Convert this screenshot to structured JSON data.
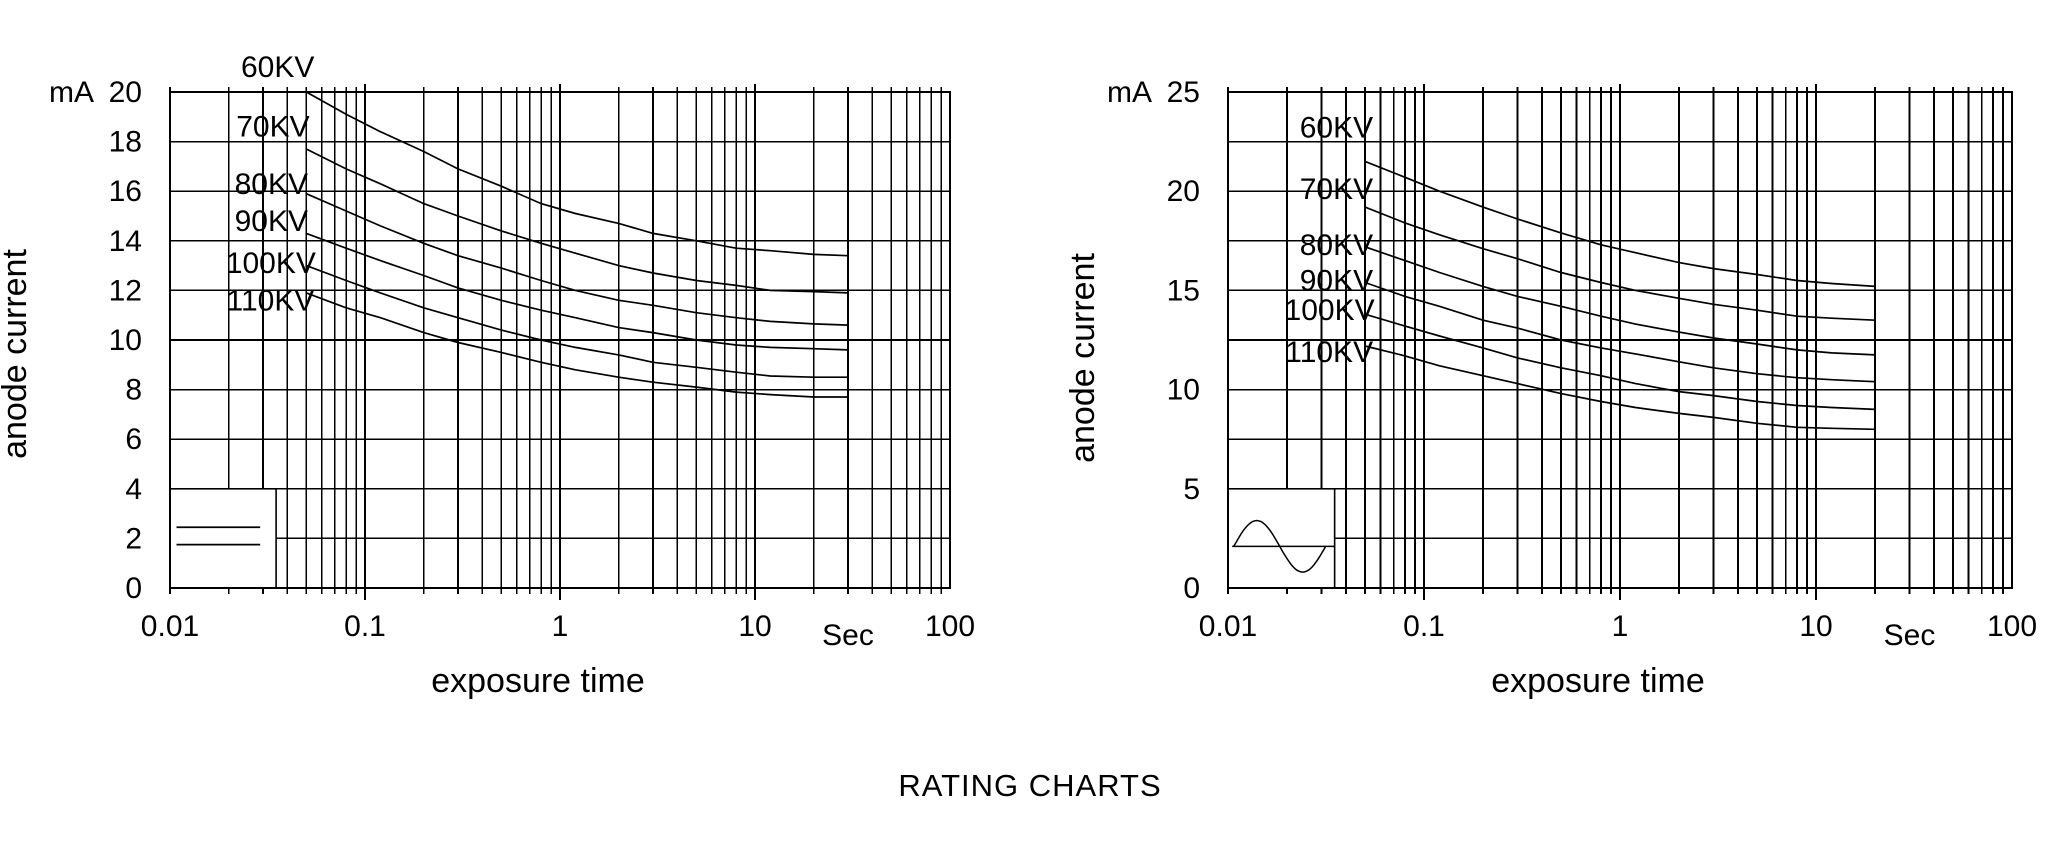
{
  "page": {
    "title": "RATING CHARTS",
    "background": "#ffffff",
    "ink_color": "#000000"
  },
  "chart_data": [
    {
      "id": "constant-potential-rating-chart",
      "type": "line",
      "title": "",
      "x_axis": {
        "scale": "log",
        "min": 0.01,
        "max": 100,
        "label": "exposure time",
        "unit_label": "Sec",
        "unit_label_t": 30,
        "ticks": [
          {
            "t": 0.01,
            "label": "0.01"
          },
          {
            "t": 0.1,
            "label": "0.1"
          },
          {
            "t": 1,
            "label": "1"
          },
          {
            "t": 10,
            "label": "10"
          },
          {
            "t": 100,
            "label": "100"
          }
        ]
      },
      "y_axis": {
        "unit": "mA",
        "min": 0,
        "max": 20,
        "tick_step": 2,
        "grid_step": 2,
        "label": "anode current"
      },
      "grid": true,
      "legend": {
        "symbol": "constant-potential-waveform"
      },
      "series": [
        {
          "name": "60KV",
          "label_t": 0.055,
          "label_mA": 21.0,
          "points": [
            [
              0.05,
              20.0
            ],
            [
              0.08,
              19.1
            ],
            [
              0.12,
              18.4
            ],
            [
              0.2,
              17.6
            ],
            [
              0.3,
              16.9
            ],
            [
              0.5,
              16.2
            ],
            [
              0.8,
              15.5
            ],
            [
              1.2,
              15.1
            ],
            [
              2,
              14.7
            ],
            [
              3,
              14.3
            ],
            [
              5,
              14.0
            ],
            [
              8,
              13.7
            ],
            [
              12,
              13.6
            ],
            [
              20,
              13.45
            ],
            [
              30,
              13.4
            ]
          ]
        },
        {
          "name": "70KV",
          "label_t": 0.052,
          "label_mA": 18.6,
          "points": [
            [
              0.05,
              17.7
            ],
            [
              0.08,
              16.9
            ],
            [
              0.12,
              16.3
            ],
            [
              0.2,
              15.5
            ],
            [
              0.3,
              15.0
            ],
            [
              0.5,
              14.4
            ],
            [
              0.8,
              13.9
            ],
            [
              1.2,
              13.5
            ],
            [
              2,
              13.0
            ],
            [
              3,
              12.7
            ],
            [
              5,
              12.4
            ],
            [
              8,
              12.2
            ],
            [
              12,
              12.0
            ],
            [
              20,
              11.95
            ],
            [
              30,
              11.9
            ]
          ]
        },
        {
          "name": "80KV",
          "label_t": 0.051,
          "label_mA": 16.3,
          "points": [
            [
              0.05,
              15.9
            ],
            [
              0.08,
              15.2
            ],
            [
              0.12,
              14.6
            ],
            [
              0.2,
              13.9
            ],
            [
              0.3,
              13.4
            ],
            [
              0.5,
              12.9
            ],
            [
              0.8,
              12.4
            ],
            [
              1.2,
              12.0
            ],
            [
              2,
              11.6
            ],
            [
              3,
              11.4
            ],
            [
              5,
              11.1
            ],
            [
              8,
              10.9
            ],
            [
              12,
              10.75
            ],
            [
              20,
              10.65
            ],
            [
              30,
              10.6
            ]
          ]
        },
        {
          "name": "90KV",
          "label_t": 0.051,
          "label_mA": 14.8,
          "points": [
            [
              0.05,
              14.3
            ],
            [
              0.08,
              13.7
            ],
            [
              0.12,
              13.2
            ],
            [
              0.2,
              12.6
            ],
            [
              0.3,
              12.1
            ],
            [
              0.5,
              11.6
            ],
            [
              0.8,
              11.2
            ],
            [
              1.2,
              10.9
            ],
            [
              2,
              10.5
            ],
            [
              3,
              10.3
            ],
            [
              5,
              10.0
            ],
            [
              8,
              9.8
            ],
            [
              12,
              9.7
            ],
            [
              20,
              9.65
            ],
            [
              30,
              9.6
            ]
          ]
        },
        {
          "name": "100KV",
          "label_t": 0.056,
          "label_mA": 13.1,
          "points": [
            [
              0.05,
              13.0
            ],
            [
              0.08,
              12.4
            ],
            [
              0.12,
              11.9
            ],
            [
              0.2,
              11.3
            ],
            [
              0.3,
              10.9
            ],
            [
              0.5,
              10.4
            ],
            [
              0.8,
              10.0
            ],
            [
              1.2,
              9.7
            ],
            [
              2,
              9.4
            ],
            [
              3,
              9.1
            ],
            [
              5,
              8.9
            ],
            [
              8,
              8.7
            ],
            [
              12,
              8.55
            ],
            [
              20,
              8.5
            ],
            [
              30,
              8.5
            ]
          ]
        },
        {
          "name": "110KV",
          "label_t": 0.055,
          "label_mA": 11.6,
          "points": [
            [
              0.05,
              11.9
            ],
            [
              0.08,
              11.3
            ],
            [
              0.12,
              10.9
            ],
            [
              0.2,
              10.3
            ],
            [
              0.3,
              9.9
            ],
            [
              0.5,
              9.5
            ],
            [
              0.8,
              9.1
            ],
            [
              1.2,
              8.8
            ],
            [
              2,
              8.5
            ],
            [
              3,
              8.3
            ],
            [
              5,
              8.1
            ],
            [
              8,
              7.9
            ],
            [
              12,
              7.8
            ],
            [
              20,
              7.7
            ],
            [
              30,
              7.7
            ]
          ]
        }
      ]
    },
    {
      "id": "single-phase-rating-chart",
      "type": "line",
      "title": "",
      "x_axis": {
        "scale": "log",
        "min": 0.01,
        "max": 100,
        "label": "exposure time",
        "unit_label": "Sec",
        "unit_label_t": 30,
        "ticks": [
          {
            "t": 0.01,
            "label": "0.01"
          },
          {
            "t": 0.1,
            "label": "0.1"
          },
          {
            "t": 1,
            "label": "1"
          },
          {
            "t": 10,
            "label": "10"
          },
          {
            "t": 100,
            "label": "100"
          }
        ]
      },
      "y_axis": {
        "unit": "mA",
        "min": 0,
        "max": 25,
        "tick_step": 5,
        "grid_step": 2.5,
        "label": "anode current"
      },
      "grid": true,
      "legend": {
        "symbol": "sine-waveform"
      },
      "series": [
        {
          "name": "60KV",
          "label_t": 0.055,
          "label_mA": 23.2,
          "points": [
            [
              0.05,
              21.5
            ],
            [
              0.08,
              20.7
            ],
            [
              0.12,
              20.0
            ],
            [
              0.2,
              19.2
            ],
            [
              0.3,
              18.6
            ],
            [
              0.5,
              17.9
            ],
            [
              0.8,
              17.3
            ],
            [
              1.2,
              16.9
            ],
            [
              2,
              16.4
            ],
            [
              3,
              16.1
            ],
            [
              5,
              15.8
            ],
            [
              8,
              15.5
            ],
            [
              12,
              15.35
            ],
            [
              20,
              15.2
            ]
          ]
        },
        {
          "name": "70KV",
          "label_t": 0.055,
          "label_mA": 20.1,
          "points": [
            [
              0.05,
              19.2
            ],
            [
              0.08,
              18.4
            ],
            [
              0.12,
              17.8
            ],
            [
              0.2,
              17.1
            ],
            [
              0.3,
              16.6
            ],
            [
              0.5,
              15.9
            ],
            [
              0.8,
              15.4
            ],
            [
              1.2,
              15.0
            ],
            [
              2,
              14.6
            ],
            [
              3,
              14.3
            ],
            [
              5,
              14.0
            ],
            [
              8,
              13.7
            ],
            [
              12,
              13.6
            ],
            [
              20,
              13.5
            ]
          ]
        },
        {
          "name": "80KV",
          "label_t": 0.055,
          "label_mA": 17.3,
          "points": [
            [
              0.05,
              17.2
            ],
            [
              0.08,
              16.5
            ],
            [
              0.12,
              15.9
            ],
            [
              0.2,
              15.2
            ],
            [
              0.3,
              14.7
            ],
            [
              0.5,
              14.2
            ],
            [
              0.8,
              13.7
            ],
            [
              1.2,
              13.3
            ],
            [
              2,
              12.9
            ],
            [
              3,
              12.6
            ],
            [
              5,
              12.3
            ],
            [
              8,
              12.0
            ],
            [
              12,
              11.85
            ],
            [
              20,
              11.75
            ]
          ]
        },
        {
          "name": "90KV",
          "label_t": 0.055,
          "label_mA": 15.5,
          "points": [
            [
              0.05,
              15.4
            ],
            [
              0.08,
              14.7
            ],
            [
              0.12,
              14.2
            ],
            [
              0.2,
              13.5
            ],
            [
              0.3,
              13.1
            ],
            [
              0.5,
              12.5
            ],
            [
              0.8,
              12.1
            ],
            [
              1.2,
              11.8
            ],
            [
              2,
              11.4
            ],
            [
              3,
              11.1
            ],
            [
              5,
              10.8
            ],
            [
              8,
              10.6
            ],
            [
              12,
              10.5
            ],
            [
              20,
              10.4
            ]
          ]
        },
        {
          "name": "100KV",
          "label_t": 0.056,
          "label_mA": 14.0,
          "points": [
            [
              0.05,
              13.8
            ],
            [
              0.08,
              13.2
            ],
            [
              0.12,
              12.7
            ],
            [
              0.2,
              12.1
            ],
            [
              0.3,
              11.6
            ],
            [
              0.5,
              11.1
            ],
            [
              0.8,
              10.7
            ],
            [
              1.2,
              10.3
            ],
            [
              2,
              9.9
            ],
            [
              3,
              9.7
            ],
            [
              5,
              9.4
            ],
            [
              8,
              9.2
            ],
            [
              12,
              9.1
            ],
            [
              20,
              9.0
            ]
          ]
        },
        {
          "name": "110KV",
          "label_t": 0.055,
          "label_mA": 11.9,
          "points": [
            [
              0.05,
              12.2
            ],
            [
              0.08,
              11.7
            ],
            [
              0.12,
              11.2
            ],
            [
              0.2,
              10.7
            ],
            [
              0.3,
              10.3
            ],
            [
              0.5,
              9.8
            ],
            [
              0.8,
              9.4
            ],
            [
              1.2,
              9.1
            ],
            [
              2,
              8.8
            ],
            [
              3,
              8.6
            ],
            [
              5,
              8.3
            ],
            [
              8,
              8.1
            ],
            [
              12,
              8.05
            ],
            [
              20,
              8.0
            ]
          ]
        }
      ]
    }
  ]
}
